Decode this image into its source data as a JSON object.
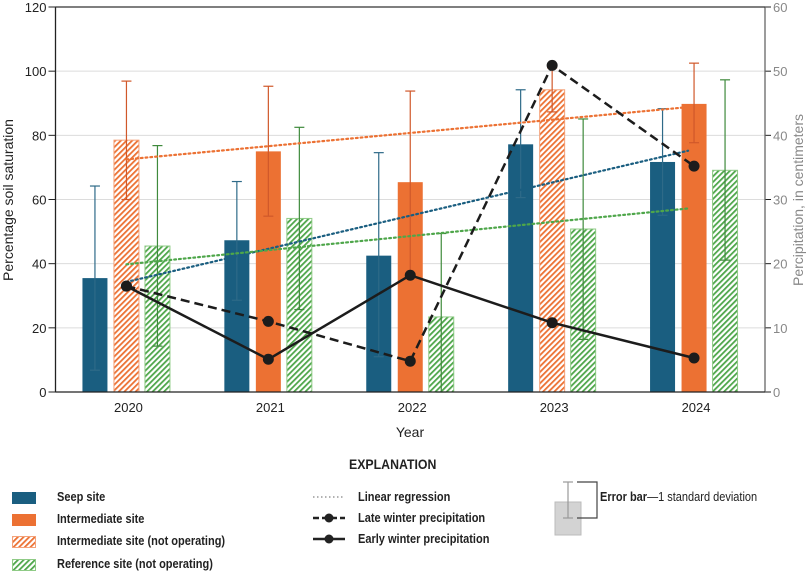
{
  "chart_data": {
    "type": "bar",
    "categories": [
      "2020",
      "2021",
      "2022",
      "2023",
      "2024"
    ],
    "xlabel": "Year",
    "ylabel": "Percentage soil saturation",
    "y2label": "Percipitation, in centimeters",
    "ylim": [
      0,
      120
    ],
    "y2lim": [
      0,
      60
    ],
    "yticks": [
      0,
      20,
      40,
      60,
      80,
      100,
      120
    ],
    "y2ticks": [
      0,
      10,
      20,
      30,
      40,
      50,
      60
    ],
    "grid": true,
    "bar_series": [
      {
        "name": "Seep site",
        "color": "#1a5e80",
        "hatched": [
          false,
          false,
          false,
          false,
          false
        ],
        "values": [
          35.5,
          47.3,
          42.5,
          77.2,
          71.7
        ],
        "err_low": [
          6.8,
          28.6,
          11.0,
          60.6,
          55.1
        ],
        "err_high": [
          64.2,
          65.6,
          74.6,
          94.2,
          88.3
        ]
      },
      {
        "name": "Intermediate site",
        "color": "#ec7133",
        "hatched": [
          true,
          false,
          false,
          true,
          false
        ],
        "values": [
          78.5,
          75.0,
          65.4,
          94.2,
          89.8
        ],
        "err_low": [
          60.0,
          54.8,
          37.0,
          87.3,
          77.7
        ],
        "err_high": [
          96.9,
          95.3,
          93.8,
          101.0,
          102.5
        ]
      },
      {
        "name": "Reference site (not operating)",
        "color": "#4ea64a",
        "hatched": [
          true,
          true,
          true,
          true,
          true
        ],
        "values": [
          45.5,
          54.1,
          23.4,
          50.8,
          69.1
        ],
        "err_low": [
          14.3,
          25.7,
          0,
          16.4,
          41.1
        ],
        "err_high": [
          76.8,
          82.5,
          49.4,
          85.1,
          97.3
        ]
      }
    ],
    "regressions": [
      {
        "series": "Intermediate site",
        "color": "#ec7133",
        "start": 72.5,
        "end": 88.8
      },
      {
        "series": "Seep site",
        "color": "#1a5e80",
        "start": 34.3,
        "end": 75.2
      },
      {
        "series": "Reference site",
        "color": "#4ea64a",
        "start": 39.8,
        "end": 57.2
      }
    ],
    "line_series": [
      {
        "name": "Late winter precipitation",
        "axis": "right",
        "dashed": true,
        "values": [
          16.5,
          11.0,
          4.8,
          50.9,
          35.2
        ]
      },
      {
        "name": "Early winter precipitation",
        "axis": "right",
        "dashed": false,
        "values": [
          16.5,
          5.1,
          18.2,
          10.8,
          5.3
        ]
      }
    ]
  },
  "legend": {
    "title": "EXPLANATION",
    "seep": "Seep site",
    "intermediate": "Intermediate site",
    "intermediate_no": "Intermediate site (not operating)",
    "reference_no": "Reference site (not operating)",
    "regression": "Linear regression",
    "late": "Late winter precipitation",
    "early": "Early winter precipitation",
    "errorbar_bold": "Error bar",
    "errorbar_rest": "—1 standard deviation"
  }
}
